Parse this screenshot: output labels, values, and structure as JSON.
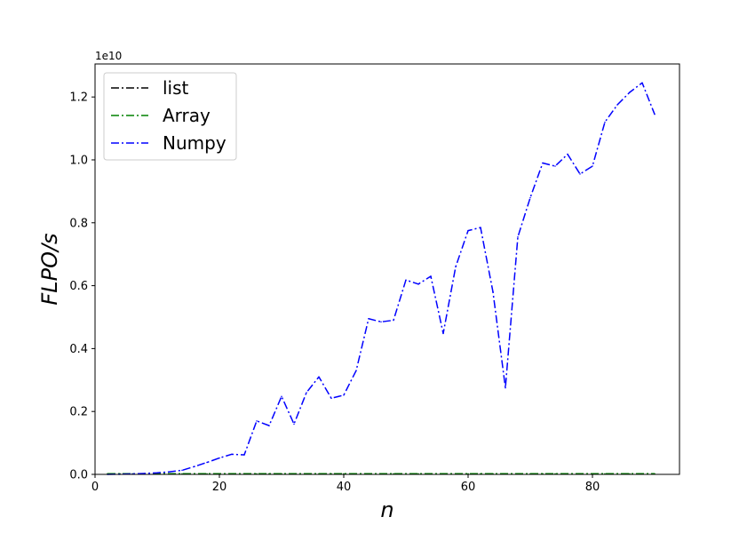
{
  "chart_data": {
    "type": "line",
    "title": "",
    "xlabel": "n",
    "ylabel": "FLPO/s",
    "y_scale_label": "1e10",
    "xlim": [
      0,
      94
    ],
    "ylim": [
      0,
      13.05
    ],
    "y_unit_multiplier": 10000000000.0,
    "x_ticks": [
      0,
      20,
      40,
      60,
      80
    ],
    "x_tick_labels": [
      "0",
      "20",
      "40",
      "60",
      "80"
    ],
    "y_ticks": [
      0,
      0.2,
      0.4,
      0.6,
      0.8,
      1.0,
      1.2
    ],
    "y_tick_labels": [
      "0.0",
      "0.2",
      "0.4",
      "0.6",
      "0.8",
      "1.0",
      "1.2"
    ],
    "grid": false,
    "legend_position": "top-left",
    "series": [
      {
        "name": "list",
        "color": "#000000",
        "linestyle": "dashdot",
        "x": [
          2,
          4,
          6,
          8,
          10,
          12,
          14,
          16,
          18,
          20,
          22,
          24,
          26,
          28,
          30,
          32,
          34,
          36,
          38,
          40,
          42,
          44,
          46,
          48,
          50,
          52,
          54,
          56,
          58,
          60,
          62,
          64,
          66,
          68,
          70,
          72,
          74,
          76,
          78,
          80,
          82,
          84,
          86,
          88,
          90
        ],
        "y": [
          0.01,
          0.01,
          0.01,
          0.01,
          0.01,
          0.01,
          0.01,
          0.01,
          0.01,
          0.01,
          0.01,
          0.01,
          0.01,
          0.01,
          0.01,
          0.01,
          0.01,
          0.01,
          0.01,
          0.01,
          0.01,
          0.01,
          0.01,
          0.01,
          0.01,
          0.01,
          0.01,
          0.01,
          0.01,
          0.01,
          0.01,
          0.01,
          0.01,
          0.01,
          0.01,
          0.01,
          0.01,
          0.01,
          0.01,
          0.01,
          0.01,
          0.01,
          0.01,
          0.01,
          0.01
        ]
      },
      {
        "name": "Array",
        "color": "#008000",
        "linestyle": "dashdot",
        "x": [
          2,
          4,
          6,
          8,
          10,
          12,
          14,
          16,
          18,
          20,
          22,
          24,
          26,
          28,
          30,
          32,
          34,
          36,
          38,
          40,
          42,
          44,
          46,
          48,
          50,
          52,
          54,
          56,
          58,
          60,
          62,
          64,
          66,
          68,
          70,
          72,
          74,
          76,
          78,
          80,
          82,
          84,
          86,
          88,
          90
        ],
        "y": [
          0.02,
          0.02,
          0.02,
          0.02,
          0.02,
          0.02,
          0.02,
          0.02,
          0.02,
          0.02,
          0.02,
          0.02,
          0.02,
          0.02,
          0.02,
          0.02,
          0.02,
          0.02,
          0.02,
          0.02,
          0.02,
          0.02,
          0.02,
          0.02,
          0.02,
          0.02,
          0.02,
          0.02,
          0.02,
          0.02,
          0.02,
          0.02,
          0.02,
          0.02,
          0.02,
          0.02,
          0.02,
          0.02,
          0.02,
          0.02,
          0.02,
          0.02,
          0.02,
          0.02,
          0.02
        ]
      },
      {
        "name": "Numpy",
        "color": "#0000ff",
        "linestyle": "dashdot",
        "x": [
          2,
          4,
          6,
          8,
          10,
          12,
          14,
          16,
          18,
          20,
          22,
          24,
          26,
          28,
          30,
          32,
          34,
          36,
          38,
          40,
          42,
          44,
          46,
          48,
          50,
          52,
          54,
          56,
          58,
          60,
          62,
          64,
          66,
          68,
          70,
          72,
          74,
          76,
          78,
          80,
          82,
          84,
          86,
          88,
          90
        ],
        "y": [
          0.0,
          0.005,
          0.015,
          0.03,
          0.05,
          0.08,
          0.13,
          0.25,
          0.38,
          0.52,
          0.64,
          0.62,
          1.7,
          1.55,
          2.48,
          1.6,
          2.6,
          3.1,
          2.42,
          2.52,
          3.3,
          4.95,
          4.85,
          4.9,
          6.18,
          6.05,
          6.3,
          4.48,
          6.6,
          7.75,
          7.85,
          5.8,
          2.75,
          7.55,
          8.8,
          9.9,
          9.8,
          10.18,
          9.55,
          9.8,
          11.2,
          11.75,
          12.15,
          12.45,
          11.45
        ]
      }
    ]
  }
}
